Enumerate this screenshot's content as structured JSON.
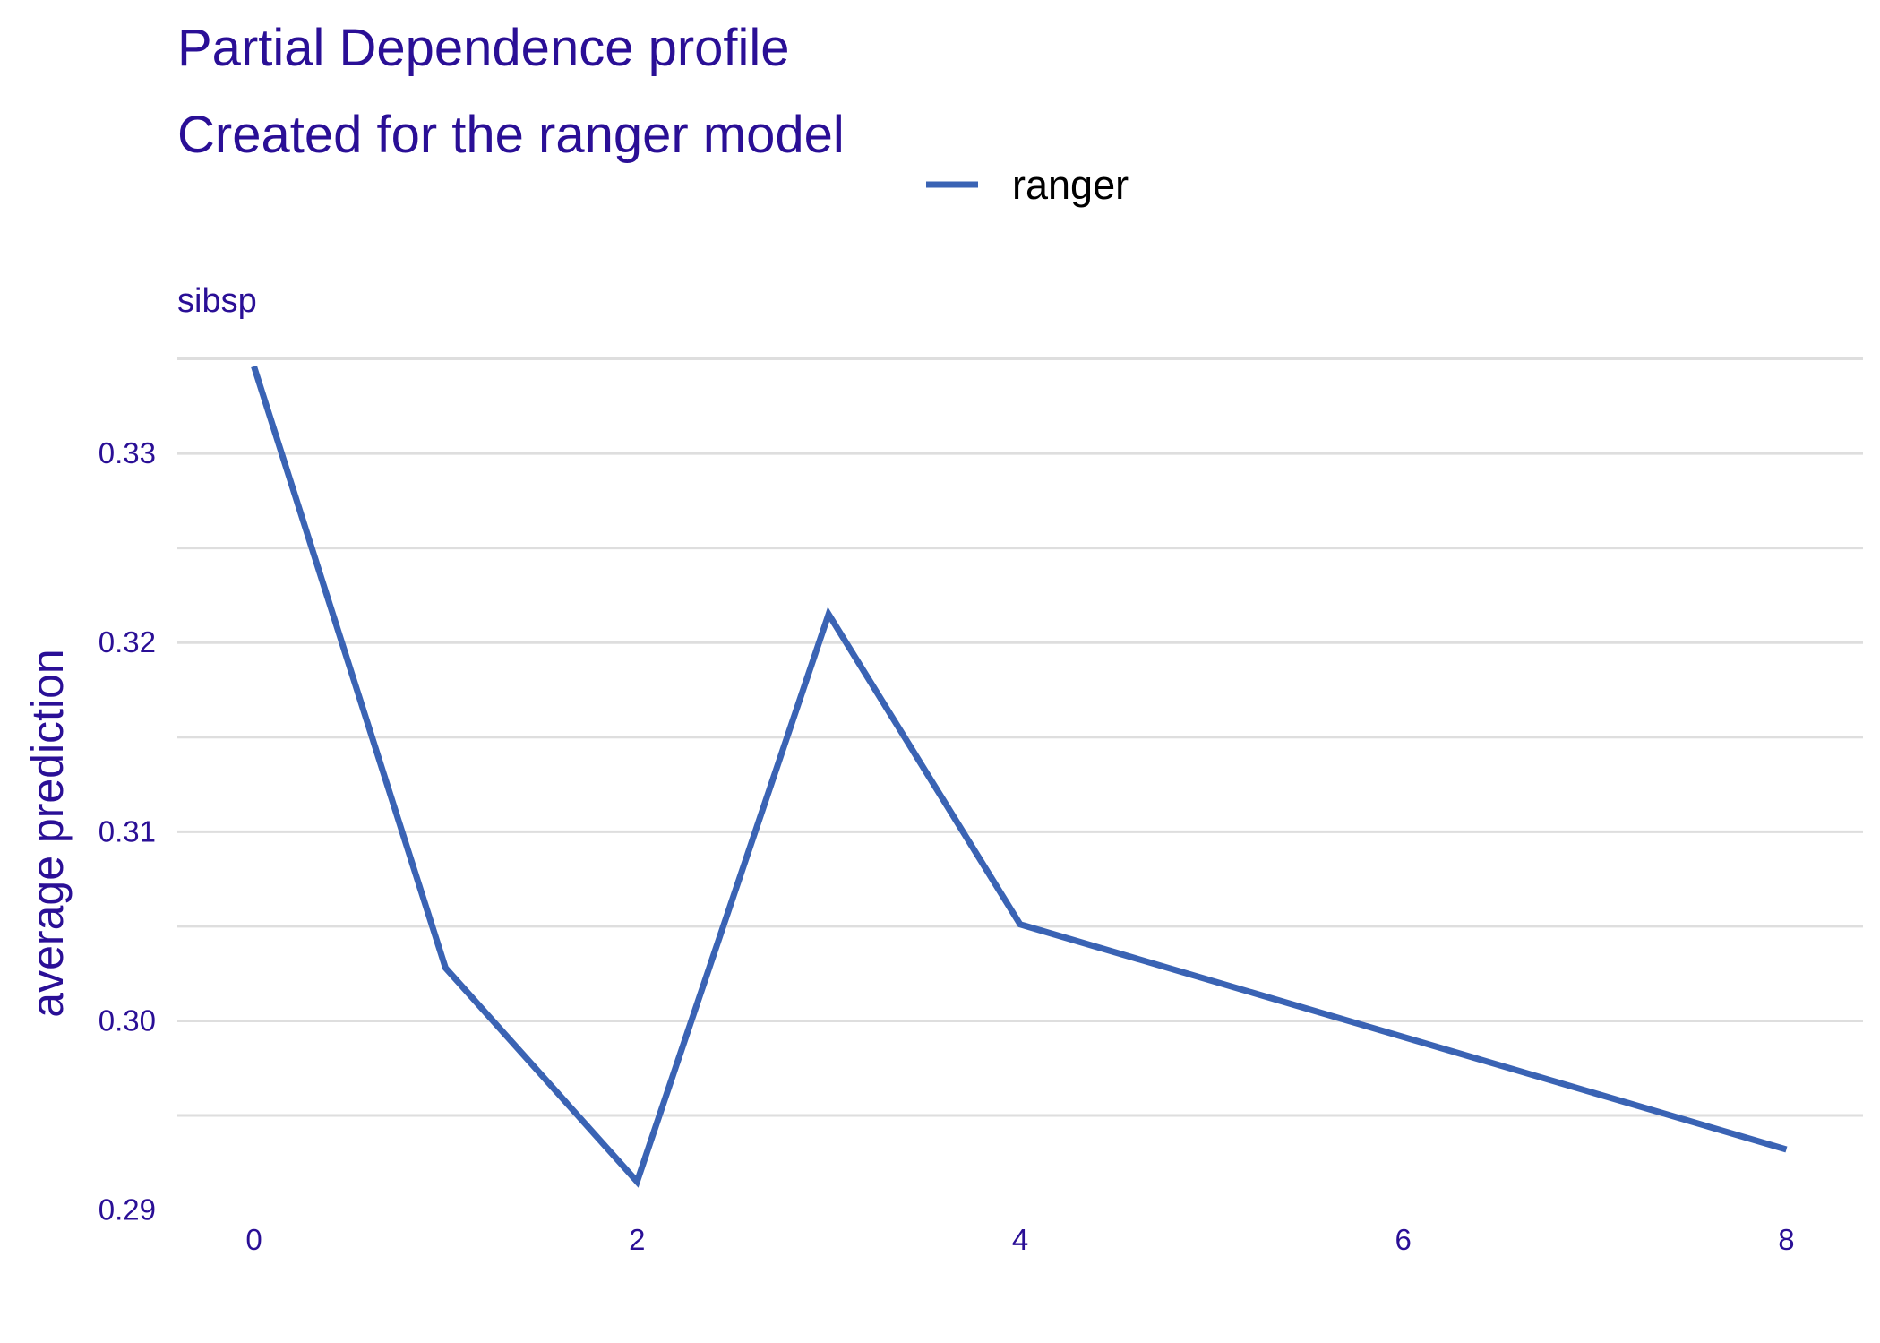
{
  "chart_data": {
    "type": "line",
    "title": "Partial Dependence profile",
    "subtitle": "Created for the ranger model",
    "panel_label": "sibsp",
    "xlabel": "",
    "ylabel": "average prediction",
    "xlim": [
      -0.4,
      8.4
    ],
    "ylim": [
      0.2905,
      0.3355
    ],
    "x_ticks": [
      0,
      2,
      4,
      6,
      8
    ],
    "y_ticks": [
      0.29,
      0.3,
      0.31,
      0.32,
      0.33
    ],
    "y_tick_labels": [
      "0.29",
      "0.30",
      "0.31",
      "0.32",
      "0.33"
    ],
    "grid": true,
    "legend_position": "top",
    "series": [
      {
        "name": "ranger",
        "color": "#3a63b4",
        "x": [
          0,
          1,
          2,
          3,
          4,
          8
        ],
        "y": [
          0.3346,
          0.3028,
          0.2915,
          0.3215,
          0.3051,
          0.2932
        ]
      }
    ]
  },
  "colors": {
    "text": "#2a0f96",
    "grid": "#dedede",
    "line": "#3a63b4"
  }
}
